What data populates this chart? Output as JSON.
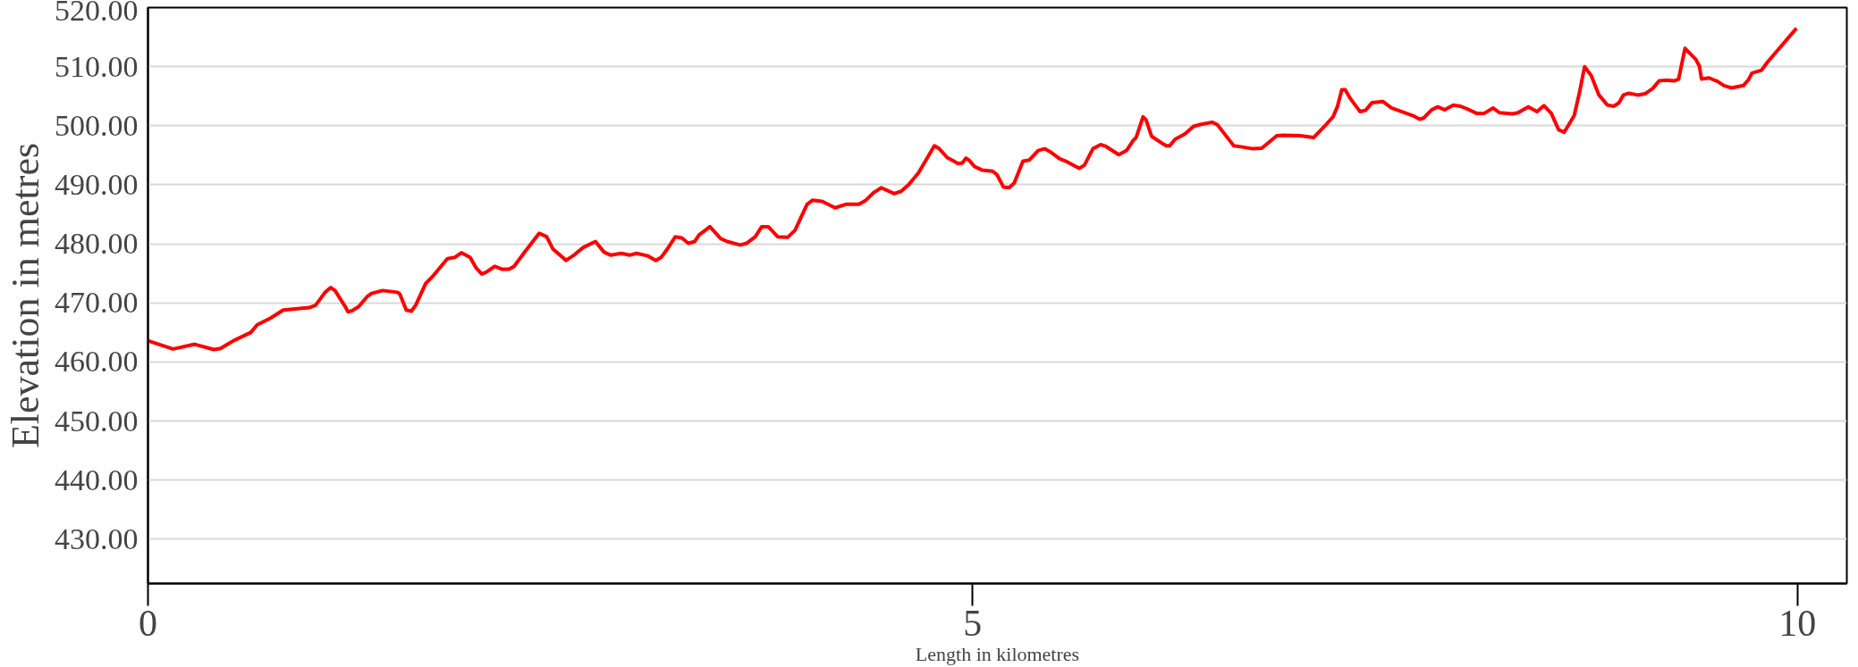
{
  "chart_data": {
    "type": "line",
    "xlabel": "Length in kilometres",
    "ylabel": "Elevation in metres",
    "xlim": [
      0,
      10.3
    ],
    "xticks": [
      0,
      5,
      10
    ],
    "ylim": [
      422.5,
      520
    ],
    "yticks": [
      {
        "value": 430,
        "label": "430.00"
      },
      {
        "value": 440,
        "label": "440.00"
      },
      {
        "value": 450,
        "label": "450.00"
      },
      {
        "value": 460,
        "label": "460.00"
      },
      {
        "value": 470,
        "label": "470.00"
      },
      {
        "value": 480,
        "label": "480.00"
      },
      {
        "value": 490,
        "label": "490.00"
      },
      {
        "value": 500,
        "label": "500.00"
      },
      {
        "value": 510,
        "label": "510.00"
      },
      {
        "value": 520,
        "label": "520.00"
      }
    ],
    "grid": "y",
    "line_style": "solid",
    "series": [
      {
        "color": "#ff0000",
        "x": [
          0,
          0.152,
          0.283,
          0.4,
          0.44,
          0.518,
          0.623,
          0.662,
          0.741,
          0.82,
          0.977,
          1.016,
          1.074,
          1.108,
          1.134,
          1.2,
          1.212,
          1.239,
          1.278,
          1.33,
          1.356,
          1.422,
          1.513,
          1.527,
          1.566,
          1.597,
          1.623,
          1.684,
          1.723,
          1.815,
          1.86,
          1.9,
          1.953,
          1.99,
          2.024,
          2.05,
          2.103,
          2.147,
          2.189,
          2.22,
          2.286,
          2.372,
          2.417,
          2.456,
          2.535,
          2.587,
          2.639,
          2.713,
          2.765,
          2.804,
          2.87,
          2.922,
          2.962,
          3.027,
          3.079,
          3.111,
          3.153,
          3.197,
          3.237,
          3.276,
          3.315,
          3.341,
          3.407,
          3.472,
          3.512,
          3.59,
          3.63,
          3.682,
          3.721,
          3.761,
          3.818,
          3.878,
          3.923,
          3.996,
          4.03,
          4.087,
          4.166,
          4.231,
          4.31,
          4.349,
          4.401,
          4.446,
          4.524,
          4.566,
          4.611,
          4.671,
          4.768,
          4.794,
          4.846,
          4.886,
          4.912,
          4.938,
          4.959,
          4.977,
          5.011,
          5.056,
          5.121,
          5.148,
          5.187,
          5.221,
          5.252,
          5.305,
          5.344,
          5.397,
          5.436,
          5.475,
          5.528,
          5.572,
          5.646,
          5.677,
          5.729,
          5.776,
          5.808,
          5.886,
          5.933,
          5.973,
          5.991,
          6.033,
          6.051,
          6.085,
          6.156,
          6.174,
          6.195,
          6.227,
          6.287,
          6.339,
          6.379,
          6.452,
          6.483,
          6.533,
          6.583,
          6.635,
          6.7,
          6.753,
          6.844,
          6.884,
          6.988,
          7.067,
          7.133,
          7.185,
          7.211,
          7.238,
          7.259,
          7.29,
          7.348,
          7.382,
          7.421,
          7.487,
          7.539,
          7.67,
          7.709,
          7.735,
          7.783,
          7.82,
          7.861,
          7.914,
          7.958,
          8.01,
          8.055,
          8.102,
          8.155,
          8.194,
          8.272,
          8.306,
          8.369,
          8.422,
          8.464,
          8.508,
          8.553,
          8.587,
          8.647,
          8.679,
          8.71,
          8.75,
          8.797,
          8.848,
          8.888,
          8.919,
          8.945,
          8.979,
          9.032,
          9.076,
          9.123,
          9.162,
          9.201,
          9.254,
          9.28,
          9.319,
          9.385,
          9.406,
          9.419,
          9.464,
          9.516,
          9.555,
          9.6,
          9.673,
          9.704,
          9.725,
          9.783,
          9.817,
          9.995
        ],
        "values": [
          463.6,
          462.2,
          463.0,
          462.1,
          462.3,
          463.6,
          465.0,
          466.3,
          467.4,
          468.8,
          469.2,
          469.6,
          471.8,
          472.6,
          472.1,
          469.2,
          468.5,
          468.7,
          469.4,
          471.1,
          471.6,
          472.1,
          471.8,
          471.5,
          468.8,
          468.6,
          469.6,
          473.3,
          474.4,
          477.5,
          477.7,
          478.5,
          477.7,
          475.9,
          474.9,
          475.2,
          476.2,
          475.7,
          475.7,
          476.2,
          478.7,
          481.8,
          481.2,
          479.1,
          477.2,
          478.2,
          479.4,
          480.4,
          478.6,
          478.1,
          478.4,
          478.1,
          478.4,
          478.0,
          477.2,
          477.7,
          479.3,
          481.2,
          481.0,
          480.1,
          480.4,
          481.5,
          482.9,
          480.9,
          480.4,
          479.8,
          480.1,
          481.2,
          482.9,
          482.9,
          481.2,
          481.1,
          482.3,
          486.7,
          487.4,
          487.2,
          486.1,
          486.7,
          486.7,
          487.3,
          488.7,
          489.5,
          488.5,
          488.9,
          490.0,
          492.0,
          496.6,
          496.2,
          494.6,
          494.0,
          493.6,
          493.7,
          494.5,
          494.2,
          493.1,
          492.5,
          492.3,
          491.7,
          489.6,
          489.5,
          490.3,
          494.0,
          494.2,
          495.8,
          496.1,
          495.5,
          494.4,
          493.9,
          492.8,
          493.3,
          496.1,
          496.8,
          496.5,
          495.1,
          495.8,
          497.5,
          498.0,
          501.5,
          501.0,
          498.2,
          496.9,
          496.6,
          496.6,
          497.7,
          498.6,
          499.9,
          500.2,
          500.6,
          500.2,
          498.4,
          496.6,
          496.4,
          496.1,
          496.2,
          498.3,
          498.4,
          498.3,
          498.0,
          499.9,
          501.5,
          503.2,
          506.1,
          506.1,
          504.6,
          502.4,
          502.6,
          503.9,
          504.1,
          503.0,
          501.7,
          501.1,
          501.3,
          502.7,
          503.2,
          502.7,
          503.5,
          503.3,
          502.7,
          502.1,
          502.1,
          503.0,
          502.2,
          502.0,
          502.2,
          503.2,
          502.4,
          503.4,
          502.1,
          499.3,
          498.9,
          501.7,
          505.6,
          510.0,
          508.5,
          505.2,
          503.5,
          503.3,
          503.9,
          505.2,
          505.5,
          505.2,
          505.4,
          506.3,
          507.6,
          507.7,
          507.6,
          507.9,
          513.1,
          511.2,
          510.1,
          507.9,
          508.1,
          507.5,
          506.8,
          506.4,
          506.8,
          507.8,
          508.9,
          509.4,
          510.7,
          516.5
        ]
      }
    ]
  }
}
